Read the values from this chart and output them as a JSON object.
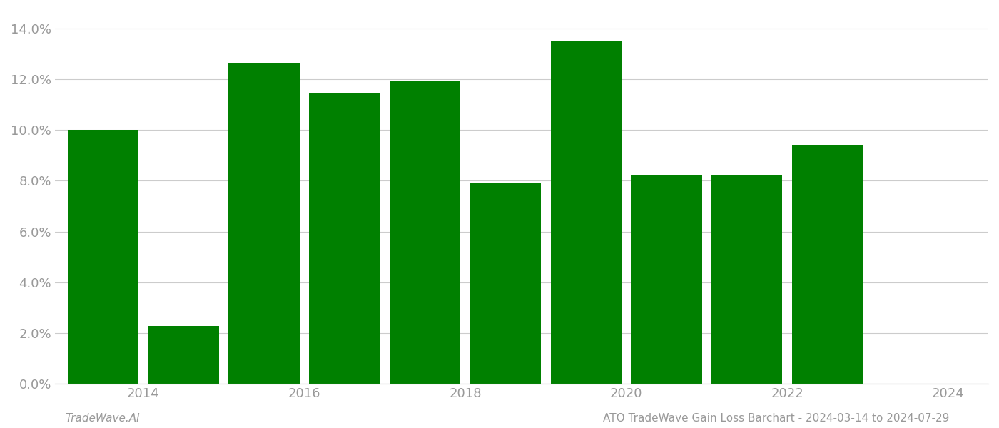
{
  "years": [
    2014,
    2015,
    2016,
    2017,
    2018,
    2019,
    2020,
    2021,
    2022,
    2023
  ],
  "values": [
    0.1002,
    0.0228,
    0.1265,
    0.1145,
    0.1195,
    0.079,
    0.1352,
    0.0822,
    0.0825,
    0.0942
  ],
  "bar_color": "#008000",
  "background_color": "#ffffff",
  "ylim": [
    0,
    0.147
  ],
  "yticks": [
    0.0,
    0.02,
    0.04,
    0.06,
    0.08,
    0.1,
    0.12,
    0.14
  ],
  "xtick_positions": [
    2014.5,
    2016.5,
    2018.5,
    2020.5,
    2022.5,
    2024.5
  ],
  "xtick_labels": [
    "2014",
    "2016",
    "2018",
    "2020",
    "2022",
    "2024"
  ],
  "xlabel": "",
  "ylabel": "",
  "title": "",
  "footer_left": "TradeWave.AI",
  "footer_right": "ATO TradeWave Gain Loss Barchart - 2024-03-14 to 2024-07-29",
  "grid_color": "#cccccc",
  "tick_color": "#999999",
  "footer_color": "#999999",
  "bar_width": 0.88,
  "font_size_ticks": 13,
  "font_size_footer": 11
}
